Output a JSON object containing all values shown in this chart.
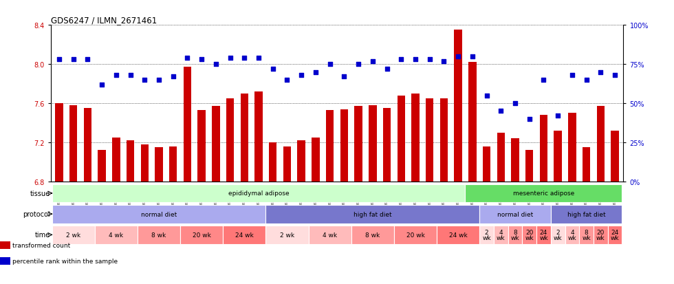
{
  "title": "GDS6247 / ILMN_2671461",
  "samples": [
    "GSM971546",
    "GSM971547",
    "GSM971548",
    "GSM971549",
    "GSM971550",
    "GSM971551",
    "GSM971552",
    "GSM971553",
    "GSM971554",
    "GSM971555",
    "GSM971556",
    "GSM971557",
    "GSM971558",
    "GSM971559",
    "GSM971560",
    "GSM971561",
    "GSM971562",
    "GSM971563",
    "GSM971564",
    "GSM971565",
    "GSM971566",
    "GSM971567",
    "GSM971568",
    "GSM971569",
    "GSM971570",
    "GSM971571",
    "GSM971572",
    "GSM971573",
    "GSM971574",
    "GSM971575",
    "GSM971576",
    "GSM971577",
    "GSM971578",
    "GSM971579",
    "GSM971580",
    "GSM971581",
    "GSM971582",
    "GSM971583",
    "GSM971584",
    "GSM971585"
  ],
  "bar_values": [
    7.6,
    7.58,
    7.55,
    7.12,
    7.25,
    7.22,
    7.18,
    7.15,
    7.16,
    7.97,
    7.53,
    7.57,
    7.65,
    7.7,
    7.72,
    7.2,
    7.16,
    7.22,
    7.25,
    7.53,
    7.54,
    7.57,
    7.58,
    7.55,
    7.68,
    7.7,
    7.65,
    7.65,
    8.35,
    8.02,
    7.16,
    7.3,
    7.24,
    7.12,
    7.48,
    7.32,
    7.5,
    7.15,
    7.57,
    7.32
  ],
  "dot_values": [
    78,
    78,
    78,
    62,
    68,
    68,
    65,
    65,
    67,
    79,
    78,
    75,
    79,
    79,
    79,
    72,
    65,
    68,
    70,
    75,
    67,
    75,
    77,
    72,
    78,
    78,
    78,
    77,
    80,
    80,
    55,
    45,
    50,
    40,
    65,
    42,
    68,
    65,
    70,
    68
  ],
  "ylim_left": [
    6.8,
    8.4
  ],
  "ylim_right": [
    0,
    100
  ],
  "yticks_left": [
    6.8,
    7.2,
    7.6,
    8.0,
    8.4
  ],
  "yticks_right": [
    0,
    25,
    50,
    75,
    100
  ],
  "bar_color": "#cc0000",
  "dot_color": "#0000cc",
  "background_color": "#ffffff",
  "tissue_row": {
    "label": "tissue",
    "segments": [
      {
        "text": "epididymal adipose",
        "start": 0,
        "end": 29,
        "color": "#ccffcc"
      },
      {
        "text": "mesenteric adipose",
        "start": 29,
        "end": 40,
        "color": "#66dd66"
      }
    ]
  },
  "protocol_row": {
    "label": "protocol",
    "segments": [
      {
        "text": "normal diet",
        "start": 0,
        "end": 15,
        "color": "#aaaaee"
      },
      {
        "text": "high fat diet",
        "start": 15,
        "end": 30,
        "color": "#7777cc"
      },
      {
        "text": "normal diet",
        "start": 30,
        "end": 35,
        "color": "#aaaaee"
      },
      {
        "text": "high fat diet",
        "start": 35,
        "end": 40,
        "color": "#7777cc"
      }
    ]
  },
  "time_row": {
    "label": "time",
    "segments": [
      {
        "text": "2 wk",
        "start": 0,
        "end": 3,
        "color": "#ffdddd"
      },
      {
        "text": "4 wk",
        "start": 3,
        "end": 6,
        "color": "#ffbbbb"
      },
      {
        "text": "8 wk",
        "start": 6,
        "end": 9,
        "color": "#ff9999"
      },
      {
        "text": "20 wk",
        "start": 9,
        "end": 12,
        "color": "#ff8888"
      },
      {
        "text": "24 wk",
        "start": 12,
        "end": 15,
        "color": "#ff7777"
      },
      {
        "text": "2 wk",
        "start": 15,
        "end": 18,
        "color": "#ffdddd"
      },
      {
        "text": "4 wk",
        "start": 18,
        "end": 21,
        "color": "#ffbbbb"
      },
      {
        "text": "8 wk",
        "start": 21,
        "end": 24,
        "color": "#ff9999"
      },
      {
        "text": "20 wk",
        "start": 24,
        "end": 27,
        "color": "#ff8888"
      },
      {
        "text": "24 wk",
        "start": 27,
        "end": 30,
        "color": "#ff7777"
      },
      {
        "text": "2\nwk",
        "start": 30,
        "end": 31,
        "color": "#ffdddd"
      },
      {
        "text": "4\nwk",
        "start": 31,
        "end": 32,
        "color": "#ffbbbb"
      },
      {
        "text": "8\nwk",
        "start": 32,
        "end": 33,
        "color": "#ff9999"
      },
      {
        "text": "20\nwk",
        "start": 33,
        "end": 34,
        "color": "#ff8888"
      },
      {
        "text": "24\nwk",
        "start": 34,
        "end": 35,
        "color": "#ff7777"
      },
      {
        "text": "2\nwk",
        "start": 35,
        "end": 36,
        "color": "#ffdddd"
      },
      {
        "text": "4\nwk",
        "start": 36,
        "end": 37,
        "color": "#ffbbbb"
      },
      {
        "text": "8\nwk",
        "start": 37,
        "end": 38,
        "color": "#ff9999"
      },
      {
        "text": "20\nwk",
        "start": 38,
        "end": 39,
        "color": "#ff8888"
      },
      {
        "text": "24\nwk",
        "start": 39,
        "end": 40,
        "color": "#ff7777"
      }
    ]
  },
  "legend": [
    {
      "label": "transformed count",
      "color": "#cc0000"
    },
    {
      "label": "percentile rank within the sample",
      "color": "#0000cc"
    }
  ]
}
